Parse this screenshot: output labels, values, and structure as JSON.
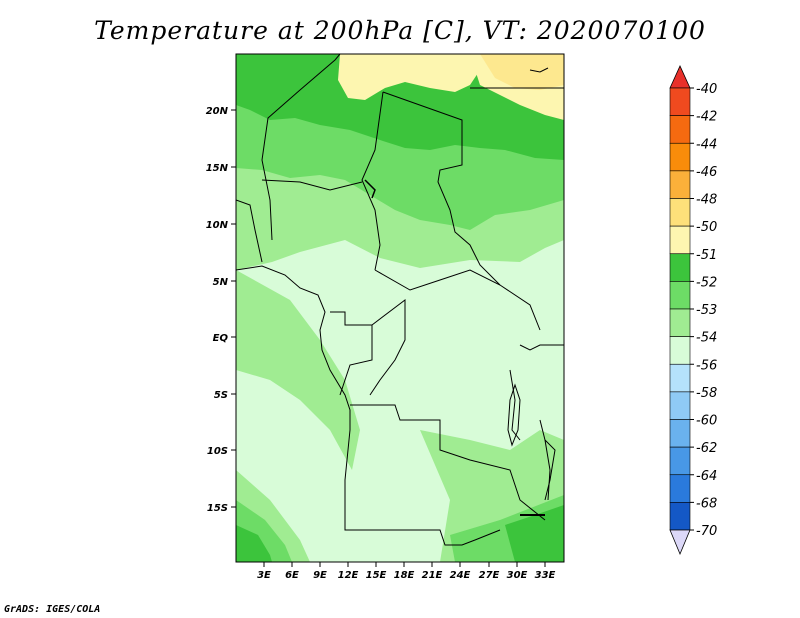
{
  "title": "Temperature at 200hPa [C], VT: 2020070100",
  "credit": "GrADS: IGES/COLA",
  "map": {
    "lat_ticks": [
      "20N",
      "15N",
      "10N",
      "5N",
      "EQ",
      "5S",
      "10S",
      "15S"
    ],
    "lon_ticks": [
      "3E",
      "6E",
      "9E",
      "12E",
      "15E",
      "18E",
      "21E",
      "24E",
      "27E",
      "30E",
      "33E"
    ]
  },
  "colorbar": {
    "labels": [
      "-40",
      "-42",
      "-44",
      "-46",
      "-48",
      "-50",
      "-51",
      "-52",
      "-53",
      "-54",
      "-56",
      "-58",
      "-60",
      "-62",
      "-64",
      "-68",
      "-70"
    ],
    "colors": {
      "top_tip": "#e8302a",
      "segments": [
        "#f04a1f",
        "#f56a10",
        "#f98c0a",
        "#fbb03a",
        "#fde07a",
        "#fdf6b0",
        "#3cc43c",
        "#6ddc66",
        "#a0ec92",
        "#d8fcd8",
        "#b5e2fb",
        "#8fcaf5",
        "#6ab2ee",
        "#4898e6",
        "#2a7adc",
        "#1458c6",
        "#0a2e9a"
      ],
      "bottom_tip": "#dcd8f8"
    }
  },
  "legend_colors": {
    "gt_-51": "#fdf6b0",
    "-52_-51": "#3cc43c",
    "-53_-52": "#6ddc66",
    "-54_-53": "#a0ec92",
    "-56_-54": "#d8fcd8"
  }
}
